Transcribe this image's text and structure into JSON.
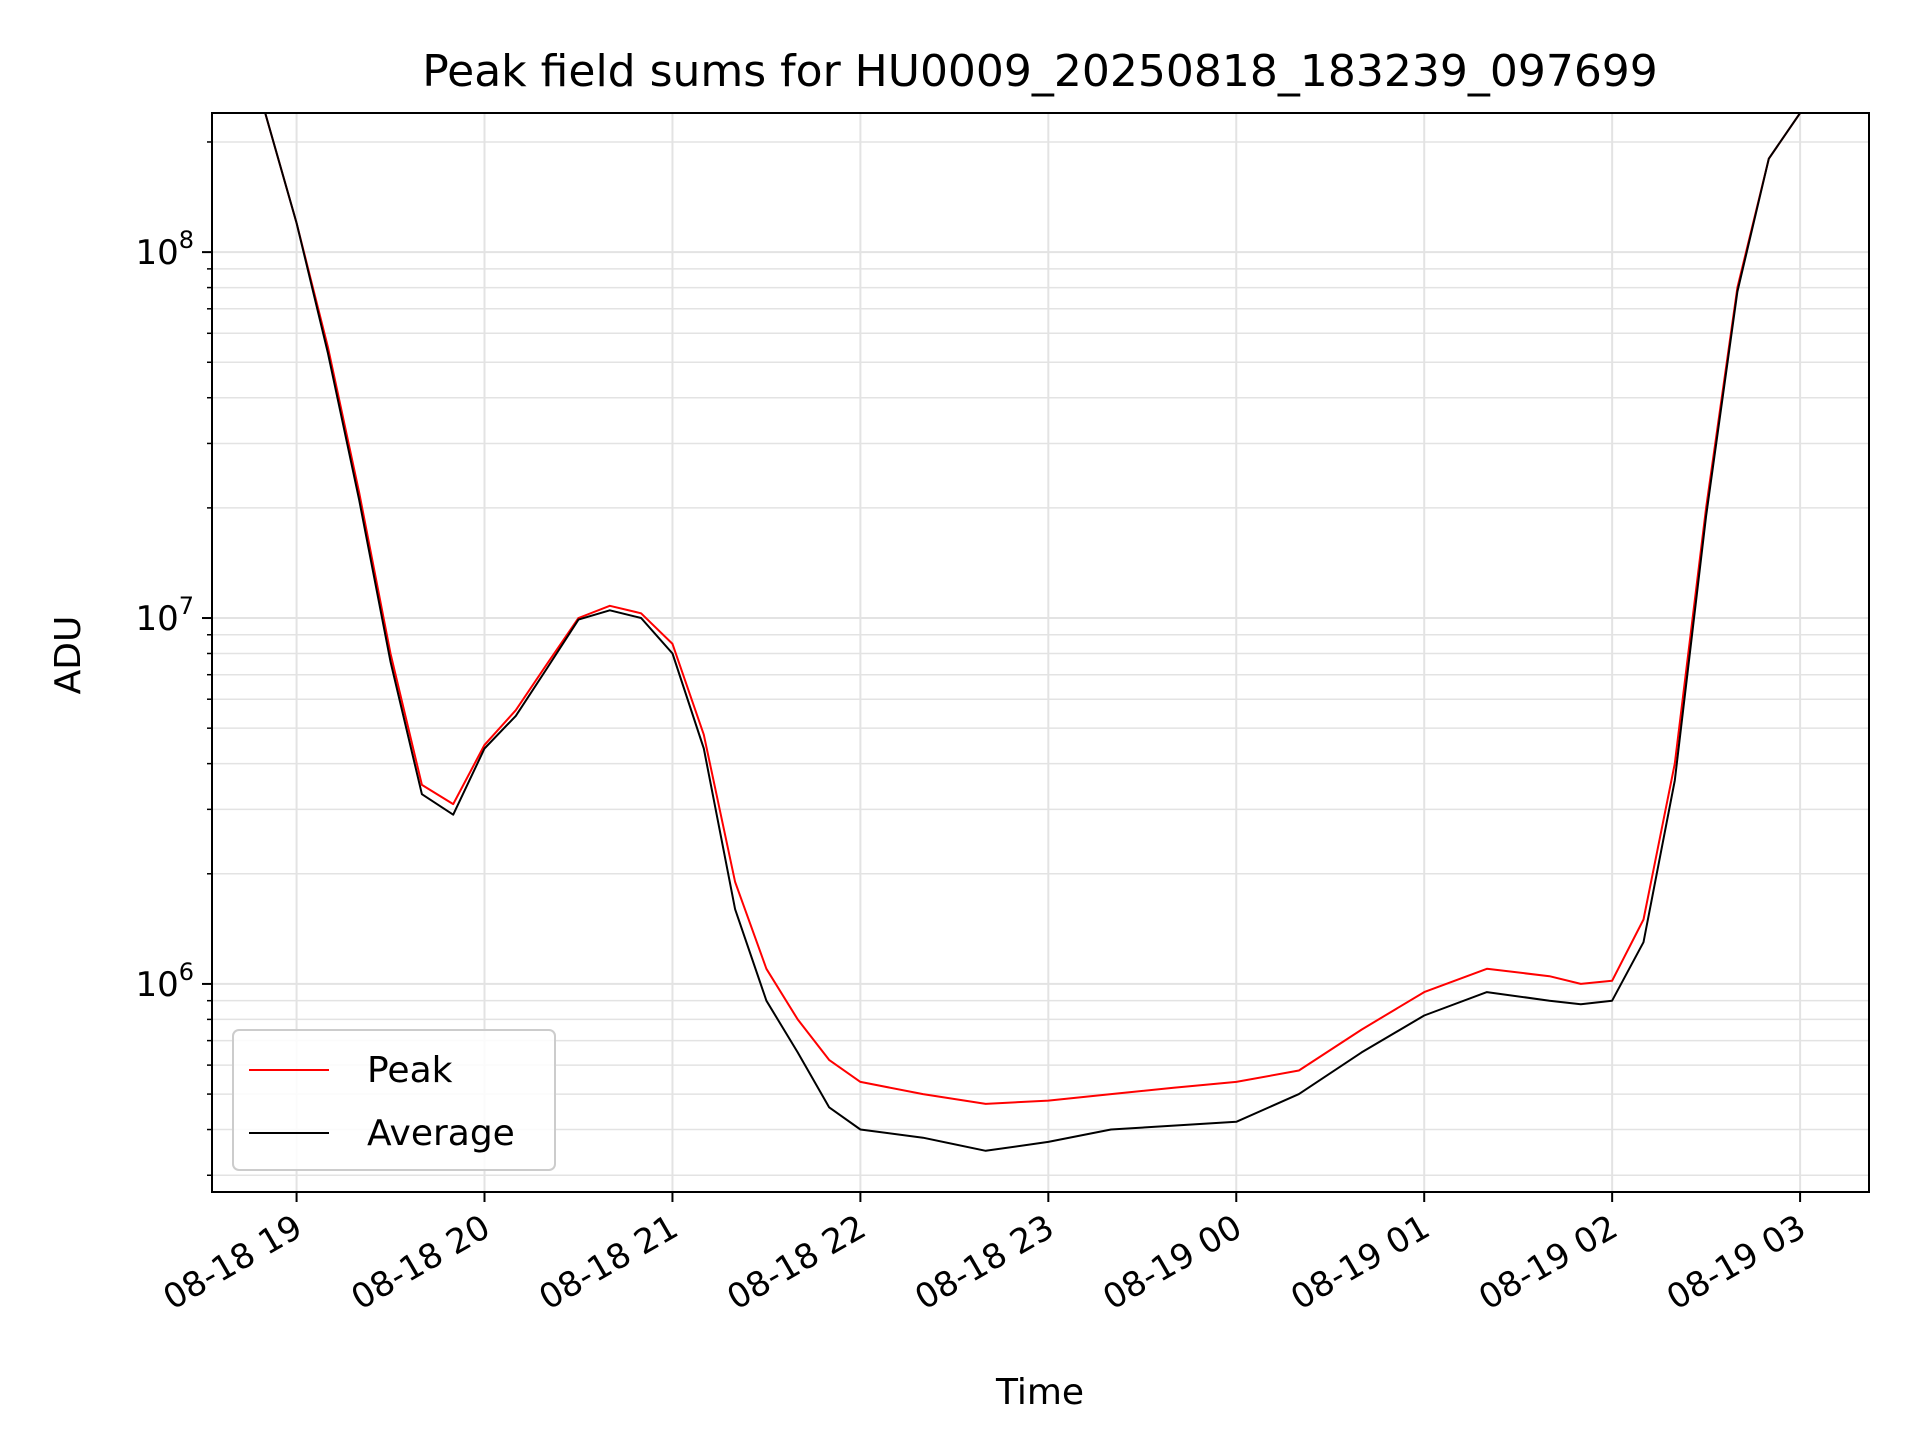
{
  "chart_data": {
    "type": "line",
    "title": "Peak field sums for HU0009_20250818_183239_097699",
    "xlabel": "Time",
    "ylabel": "ADU",
    "yscale": "log",
    "ylim": [
      270000,
      240000000
    ],
    "xlim": [
      "2025-08-18 18:33",
      "2025-08-19 03:22"
    ],
    "grid": true,
    "legend_position": "lower-left",
    "x_ticks": [
      "08-18 19",
      "08-18 20",
      "08-18 21",
      "08-18 22",
      "08-18 23",
      "08-19 00",
      "08-19 01",
      "08-19 02",
      "08-19 03"
    ],
    "y_ticks": [
      {
        "base": "10",
        "exp": "6",
        "value": 1000000
      },
      {
        "base": "10",
        "exp": "7",
        "value": 10000000
      },
      {
        "base": "10",
        "exp": "8",
        "value": 100000000
      }
    ],
    "series": [
      {
        "name": "Peak",
        "color": "#ff0000",
        "x": [
          "2025-08-18 18:50",
          "2025-08-18 19:00",
          "2025-08-18 19:10",
          "2025-08-18 19:20",
          "2025-08-18 19:30",
          "2025-08-18 19:40",
          "2025-08-18 19:50",
          "2025-08-18 20:00",
          "2025-08-18 20:10",
          "2025-08-18 20:20",
          "2025-08-18 20:30",
          "2025-08-18 20:40",
          "2025-08-18 20:50",
          "2025-08-18 21:00",
          "2025-08-18 21:10",
          "2025-08-18 21:20",
          "2025-08-18 21:30",
          "2025-08-18 21:40",
          "2025-08-18 21:50",
          "2025-08-18 22:00",
          "2025-08-18 22:20",
          "2025-08-18 22:40",
          "2025-08-18 23:00",
          "2025-08-18 23:20",
          "2025-08-18 23:40",
          "2025-08-19 00:00",
          "2025-08-19 00:20",
          "2025-08-19 00:40",
          "2025-08-19 01:00",
          "2025-08-19 01:20",
          "2025-08-19 01:40",
          "2025-08-19 01:50",
          "2025-08-19 02:00",
          "2025-08-19 02:10",
          "2025-08-19 02:20",
          "2025-08-19 02:30",
          "2025-08-19 02:40",
          "2025-08-19 02:50",
          "2025-08-19 03:00"
        ],
        "values": [
          240000000,
          120000000,
          55000000,
          22000000,
          8000000,
          3500000,
          3100000,
          4500000,
          5600000,
          7500000,
          10000000,
          10800000,
          10300000,
          8500000,
          4800000,
          1900000,
          1100000,
          800000,
          620000,
          540000,
          500000,
          470000,
          480000,
          500000,
          520000,
          540000,
          580000,
          750000,
          950000,
          1100000,
          1050000,
          1000000,
          1020000,
          1500000,
          4000000,
          20000000,
          80000000,
          180000000,
          240000000
        ]
      },
      {
        "name": "Average",
        "color": "#000000",
        "x": [
          "2025-08-18 18:50",
          "2025-08-18 19:00",
          "2025-08-18 19:10",
          "2025-08-18 19:20",
          "2025-08-18 19:30",
          "2025-08-18 19:40",
          "2025-08-18 19:50",
          "2025-08-18 20:00",
          "2025-08-18 20:10",
          "2025-08-18 20:20",
          "2025-08-18 20:30",
          "2025-08-18 20:40",
          "2025-08-18 20:50",
          "2025-08-18 21:00",
          "2025-08-18 21:10",
          "2025-08-18 21:20",
          "2025-08-18 21:30",
          "2025-08-18 21:40",
          "2025-08-18 21:50",
          "2025-08-18 22:00",
          "2025-08-18 22:20",
          "2025-08-18 22:40",
          "2025-08-18 23:00",
          "2025-08-18 23:20",
          "2025-08-18 23:40",
          "2025-08-19 00:00",
          "2025-08-19 00:20",
          "2025-08-19 00:40",
          "2025-08-19 01:00",
          "2025-08-19 01:20",
          "2025-08-19 01:40",
          "2025-08-19 01:50",
          "2025-08-19 02:00",
          "2025-08-19 02:10",
          "2025-08-19 02:20",
          "2025-08-19 02:30",
          "2025-08-19 02:40",
          "2025-08-19 02:50",
          "2025-08-19 03:00"
        ],
        "values": [
          240000000,
          120000000,
          53000000,
          21000000,
          7600000,
          3300000,
          2900000,
          4400000,
          5400000,
          7300000,
          9900000,
          10500000,
          10000000,
          8000000,
          4400000,
          1600000,
          900000,
          650000,
          460000,
          400000,
          380000,
          350000,
          370000,
          400000,
          410000,
          420000,
          500000,
          650000,
          820000,
          950000,
          900000,
          880000,
          900000,
          1300000,
          3600000,
          19000000,
          78000000,
          180000000,
          240000000
        ]
      }
    ]
  }
}
